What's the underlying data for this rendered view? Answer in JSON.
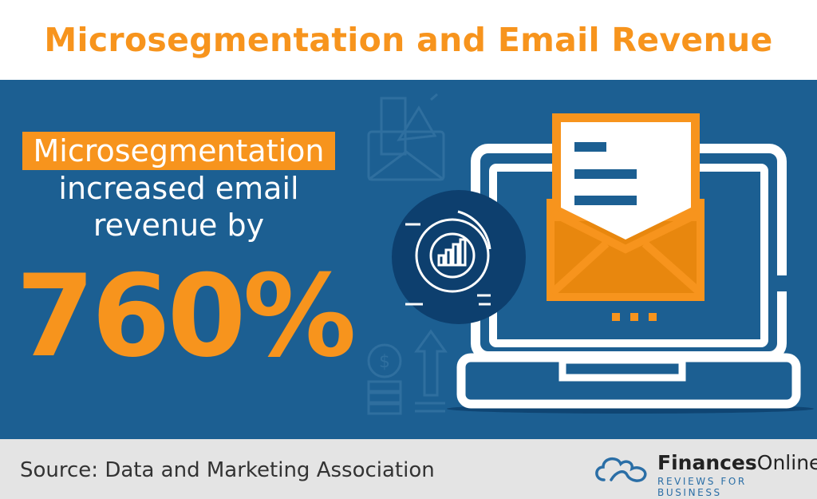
{
  "title": "Microsegmentation and Email Revenue",
  "stat": {
    "highlight": "Microsegmentation",
    "line1": "increased email",
    "line2": "revenue by",
    "value": "760%"
  },
  "footer": {
    "source": "Source: Data and Marketing Association",
    "logo_bold": "Finances",
    "logo_light": "Online",
    "logo_tagline": "REVIEWS FOR BUSINESS"
  },
  "colors": {
    "accent": "#f7941d",
    "background_blue": "#1c5f92",
    "circle_blue": "#0d3f6e",
    "footer_gray": "#e4e4e4"
  },
  "icons": [
    "megaphone-envelope-icon",
    "analytics-chart-icon",
    "laptop-email-icon",
    "dollar-growth-icon",
    "cloud-logo-icon"
  ]
}
